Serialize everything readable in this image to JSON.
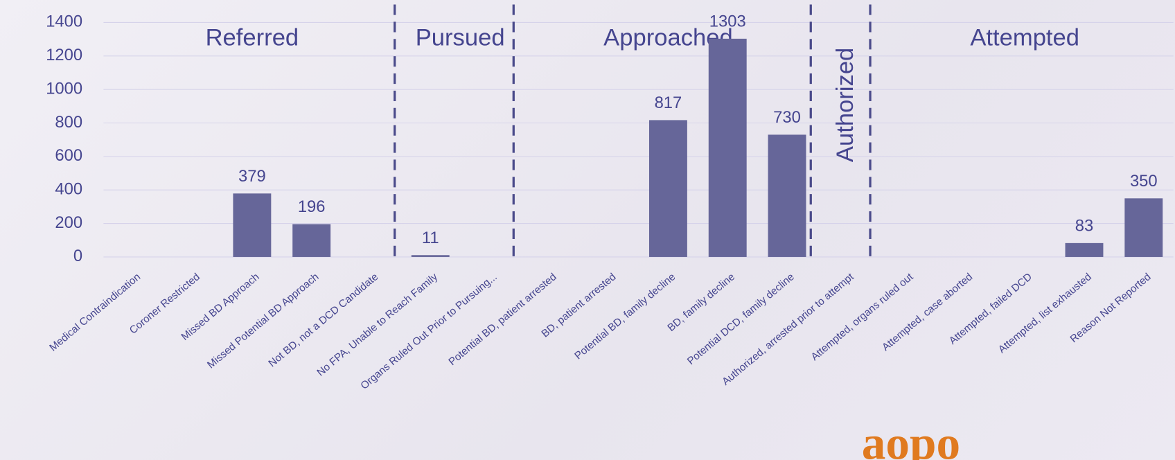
{
  "chart_data": {
    "type": "bar",
    "categories": [
      "Medical Contraindication",
      "Coroner Restricted",
      "Missed BD Approach",
      "Missed Potential BD Approach",
      "Not BD, not a DCD Candidate",
      "No FPA, Unable to Reach Family",
      "Organs Ruled Out Prior to Pursuing...",
      "Potential BD, patient arrested",
      "BD, patient arrested",
      "Potential BD, family decline",
      "BD, family decline",
      "Potential DCD, family decline",
      "Authorized, arrested prior to attempt",
      "Attempted, organs ruled out",
      "Attempted, case aborted",
      "Attempted, failed DCD",
      "Attempted, list exhausted",
      "Reason Not Reported"
    ],
    "values": [
      0,
      0,
      379,
      196,
      0,
      11,
      0,
      0,
      0,
      817,
      1303,
      730,
      0,
      0,
      0,
      0,
      83,
      350
    ],
    "color": "#666699",
    "ylim": [
      0,
      1400
    ],
    "yticks": [
      0,
      200,
      400,
      600,
      800,
      1000,
      1200,
      1400
    ],
    "grid": true,
    "sections": [
      "Referred",
      "Pursued",
      "Approached",
      "Authorized",
      "Attempted"
    ],
    "logo": "aopo"
  }
}
